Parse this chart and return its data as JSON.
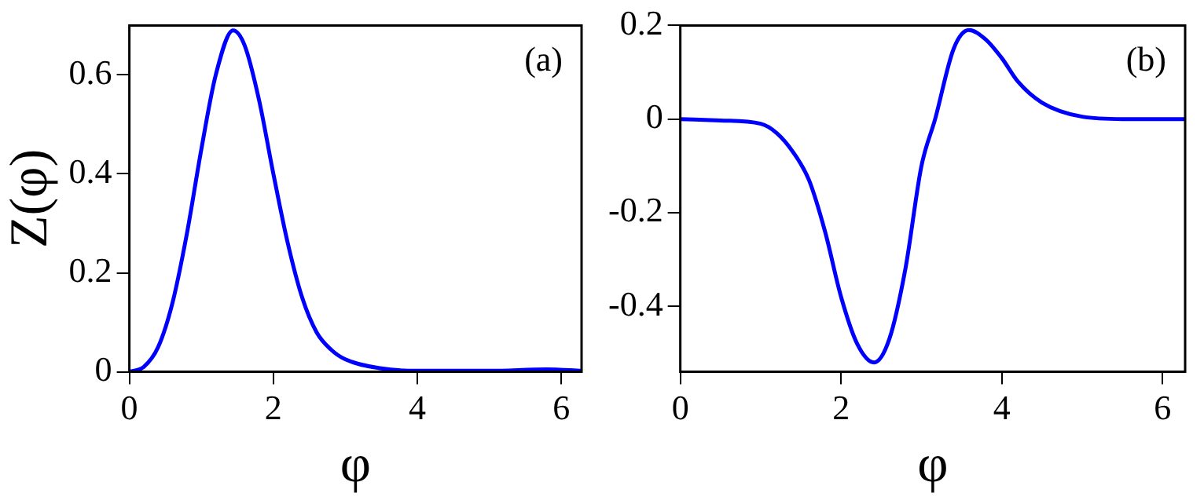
{
  "chart_data": [
    {
      "type": "line",
      "ylabel": "Z(φ)",
      "xlabel": "φ",
      "annotations": [
        "(a)"
      ],
      "xlim": [
        0,
        6.28
      ],
      "xticks": [
        0,
        2,
        4,
        6
      ],
      "ylim": [
        0,
        0.7
      ],
      "yticks": [
        0,
        0.2,
        0.4,
        0.6
      ],
      "grid": false,
      "legend": false,
      "marker": "none",
      "line_style": "solid",
      "series": [
        {
          "color": "#0000ff",
          "x": [
            0,
            0.2,
            0.4,
            0.6,
            0.8,
            1.0,
            1.2,
            1.44,
            1.6,
            1.8,
            2.0,
            2.2,
            2.4,
            2.6,
            2.8,
            3.0,
            3.5,
            4.0,
            5.0,
            5.8,
            6.28
          ],
          "values": [
            0,
            0.01,
            0.05,
            0.14,
            0.28,
            0.45,
            0.6,
            0.69,
            0.66,
            0.55,
            0.4,
            0.26,
            0.15,
            0.08,
            0.045,
            0.025,
            0.007,
            0.002,
            0.002,
            0.005,
            0.002
          ]
        }
      ]
    },
    {
      "type": "line",
      "xlabel": "φ",
      "annotations": [
        "(b)"
      ],
      "xlim": [
        0,
        6.28
      ],
      "xticks": [
        0,
        2,
        4,
        6
      ],
      "ylim": [
        -0.54,
        0.2
      ],
      "yticks": [
        -0.4,
        -0.2,
        0,
        0.2
      ],
      "grid": false,
      "legend": false,
      "marker": "none",
      "line_style": "solid",
      "series": [
        {
          "color": "#0000ff",
          "x": [
            0,
            0.5,
            1.0,
            1.2,
            1.4,
            1.6,
            1.8,
            2.0,
            2.2,
            2.41,
            2.6,
            2.8,
            3.0,
            3.17,
            3.4,
            3.59,
            3.8,
            4.0,
            4.2,
            4.5,
            5.0,
            5.5,
            6.28
          ],
          "values": [
            0,
            -0.003,
            -0.01,
            -0.03,
            -0.07,
            -0.13,
            -0.24,
            -0.38,
            -0.48,
            -0.52,
            -0.47,
            -0.32,
            -0.1,
            0,
            0.15,
            0.19,
            0.17,
            0.13,
            0.08,
            0.035,
            0.005,
            0,
            0
          ]
        }
      ]
    }
  ]
}
